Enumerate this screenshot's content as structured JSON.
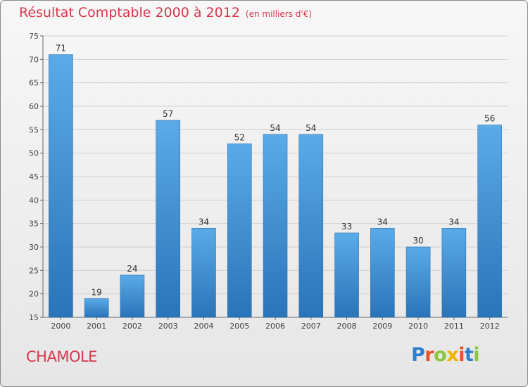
{
  "chart_data": {
    "type": "bar",
    "title": "Résultat Comptable 2000 à 2012",
    "subtitle": "(en milliers d'€)",
    "categories": [
      "2000",
      "2001",
      "2002",
      "2003",
      "2004",
      "2005",
      "2006",
      "2007",
      "2008",
      "2009",
      "2010",
      "2011",
      "2012"
    ],
    "values": [
      71,
      19,
      24,
      57,
      34,
      52,
      54,
      54,
      33,
      34,
      30,
      34,
      56
    ],
    "ylim": [
      15,
      75
    ],
    "yticks": [
      15,
      20,
      25,
      30,
      35,
      40,
      45,
      50,
      55,
      60,
      65,
      70,
      75
    ],
    "xlabel": "",
    "ylabel": "",
    "grid": true
  },
  "location": "CHAMOLE",
  "brand": {
    "letters": [
      "P",
      "r",
      "o",
      "x",
      "i",
      "t",
      "i"
    ],
    "colors": [
      "#2d7fcf",
      "#e8522a",
      "#8cc63f",
      "#f0b400",
      "#e8522a",
      "#2d7fcf",
      "#8cc63f"
    ]
  },
  "colors": {
    "bar": "#4e9fe0",
    "bar_dark": "#2f7bc1",
    "title": "#d6384d"
  }
}
